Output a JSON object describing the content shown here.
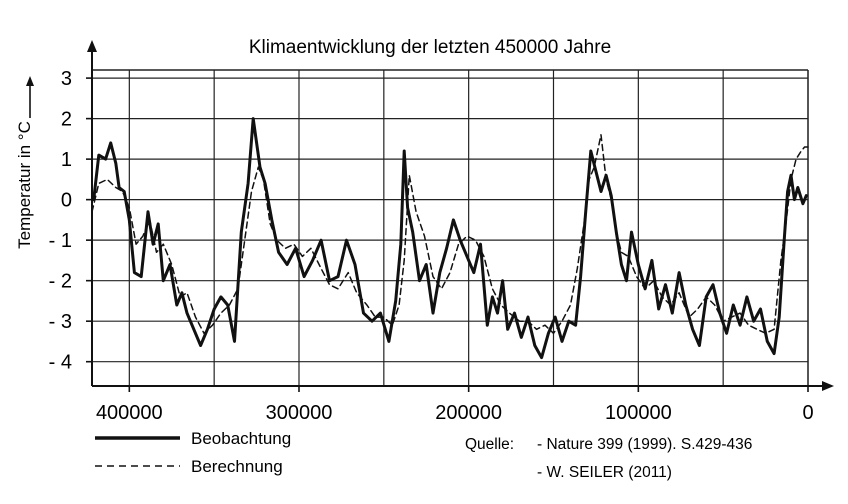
{
  "chart_data": {
    "type": "line",
    "title": "Klimaentwicklung der letzten 450000 Jahre",
    "ylabel": "Temperatur in °C",
    "xlabel": "",
    "x_ticks": [
      400000,
      300000,
      200000,
      100000,
      0
    ],
    "x_tick_labels": [
      "400000",
      "300000",
      "200000",
      "100000",
      "0"
    ],
    "y_ticks": [
      3,
      2,
      1,
      0,
      -1,
      -2,
      -3,
      -4
    ],
    "y_tick_labels": [
      "3",
      "2",
      "1",
      "0",
      "- 1",
      "- 2",
      "- 3",
      "- 4"
    ],
    "xlim": [
      422000,
      0
    ],
    "ylim": [
      -4.6,
      3.2
    ],
    "grid": true,
    "series": [
      {
        "name": "Beobachtung",
        "style": "solid",
        "x": [
          421000,
          418000,
          414000,
          411000,
          408000,
          406000,
          403000,
          400000,
          397000,
          393000,
          389000,
          386000,
          383000,
          380000,
          376000,
          372000,
          369000,
          366000,
          362000,
          358000,
          354000,
          350000,
          346000,
          342000,
          338000,
          334000,
          330000,
          327000,
          323000,
          320000,
          316000,
          312000,
          307000,
          302000,
          297000,
          292000,
          287000,
          282000,
          277000,
          272000,
          267000,
          262000,
          257000,
          252000,
          247000,
          243000,
          240000,
          238000,
          236000,
          233000,
          229000,
          225000,
          221000,
          217000,
          213000,
          209000,
          205000,
          201000,
          197000,
          193000,
          189000,
          186000,
          183000,
          180000,
          177000,
          173000,
          169000,
          165000,
          161000,
          157000,
          153000,
          149000,
          145000,
          141000,
          137000,
          134000,
          131000,
          128000,
          125000,
          122000,
          119000,
          116000,
          113000,
          110000,
          107000,
          104000,
          100000,
          96000,
          92000,
          88000,
          84000,
          80000,
          76000,
          72000,
          68000,
          64000,
          60000,
          56000,
          52000,
          48000,
          44000,
          40000,
          36000,
          32000,
          28000,
          24000,
          20000,
          17000,
          14000,
          12000,
          10000,
          8000,
          6000,
          3000,
          1000
        ],
        "y": [
          0.0,
          1.1,
          1.0,
          1.4,
          0.9,
          0.3,
          0.2,
          -0.5,
          -1.8,
          -1.9,
          -0.3,
          -1.1,
          -0.6,
          -2.0,
          -1.6,
          -2.6,
          -2.3,
          -2.8,
          -3.2,
          -3.6,
          -3.2,
          -2.7,
          -2.4,
          -2.6,
          -3.5,
          -0.8,
          0.4,
          2.0,
          0.8,
          0.4,
          -0.5,
          -1.3,
          -1.6,
          -1.2,
          -1.9,
          -1.5,
          -1.0,
          -2.0,
          -1.9,
          -1.0,
          -1.6,
          -2.8,
          -3.0,
          -2.8,
          -3.5,
          -2.5,
          -1.1,
          1.2,
          -0.2,
          -0.8,
          -2.0,
          -1.6,
          -2.8,
          -1.8,
          -1.2,
          -0.5,
          -1.0,
          -1.4,
          -1.8,
          -1.1,
          -3.1,
          -2.4,
          -2.8,
          -2.0,
          -3.2,
          -2.8,
          -3.4,
          -2.9,
          -3.6,
          -3.9,
          -3.3,
          -2.9,
          -3.5,
          -3.0,
          -3.1,
          -1.9,
          -0.3,
          1.2,
          0.7,
          0.2,
          0.6,
          0.1,
          -0.8,
          -1.6,
          -2.0,
          -0.8,
          -1.6,
          -2.2,
          -1.5,
          -2.7,
          -2.1,
          -2.8,
          -1.8,
          -2.6,
          -3.2,
          -3.6,
          -2.4,
          -2.1,
          -2.8,
          -3.3,
          -2.6,
          -3.1,
          -2.4,
          -3.0,
          -2.7,
          -3.5,
          -3.8,
          -2.9,
          -1.0,
          0.2,
          0.6,
          0.0,
          0.3,
          -0.1,
          0.1
        ]
      },
      {
        "name": "Berechnung",
        "style": "dashed",
        "x": [
          422000,
          418000,
          413000,
          408000,
          404000,
          400000,
          396000,
          392000,
          388000,
          384000,
          380000,
          375000,
          370000,
          366000,
          361000,
          356000,
          351000,
          346000,
          341000,
          336000,
          332000,
          328000,
          324000,
          321000,
          317000,
          313000,
          308000,
          303000,
          298000,
          293000,
          287000,
          282000,
          277000,
          271000,
          266000,
          260000,
          255000,
          250000,
          245000,
          241000,
          238000,
          235000,
          231000,
          226000,
          221000,
          216000,
          211000,
          206000,
          201000,
          196000,
          191000,
          186000,
          181000,
          176000,
          170000,
          165000,
          160000,
          155000,
          150000,
          145000,
          140000,
          136000,
          132000,
          129000,
          126000,
          122000,
          119000,
          116000,
          113000,
          110000,
          106000,
          101000,
          96000,
          91000,
          86000,
          81000,
          76000,
          70000,
          65000,
          60000,
          55000,
          50000,
          45000,
          40000,
          35000,
          30000,
          25000,
          20000,
          16000,
          13000,
          10000,
          7000,
          4000,
          2000,
          0
        ],
        "y": [
          -0.3,
          0.4,
          0.5,
          0.3,
          0.2,
          -0.2,
          -1.1,
          -0.9,
          -0.5,
          -1.3,
          -1.1,
          -1.6,
          -2.4,
          -2.3,
          -2.9,
          -3.3,
          -3.1,
          -2.8,
          -2.6,
          -2.2,
          -1.0,
          0.2,
          0.8,
          0.5,
          -0.6,
          -1.0,
          -1.2,
          -1.1,
          -1.4,
          -1.2,
          -1.7,
          -2.1,
          -2.2,
          -1.8,
          -2.3,
          -2.6,
          -2.9,
          -2.9,
          -3.1,
          -2.6,
          -1.5,
          0.6,
          -0.3,
          -0.9,
          -1.9,
          -2.2,
          -1.8,
          -1.1,
          -0.9,
          -1.0,
          -1.4,
          -2.2,
          -2.6,
          -2.8,
          -3.0,
          -3.0,
          -3.2,
          -3.1,
          -3.3,
          -3.0,
          -2.6,
          -1.7,
          -0.6,
          0.5,
          0.8,
          1.6,
          0.5,
          0.0,
          -0.8,
          -1.3,
          -1.4,
          -1.9,
          -2.2,
          -2.0,
          -2.4,
          -2.6,
          -2.3,
          -2.9,
          -2.7,
          -2.4,
          -2.6,
          -3.0,
          -2.9,
          -2.8,
          -3.1,
          -3.2,
          -3.3,
          -3.2,
          -1.5,
          -0.6,
          0.5,
          1.0,
          1.2,
          1.3,
          1.3
        ]
      }
    ]
  },
  "legend": {
    "observation_label": "Beobachtung",
    "calculation_label": "Berechnung"
  },
  "source": {
    "label": "Quelle:",
    "line1": "- Nature 399 (1999). S.429-436",
    "line2": "- W. SEILER (2011)"
  }
}
